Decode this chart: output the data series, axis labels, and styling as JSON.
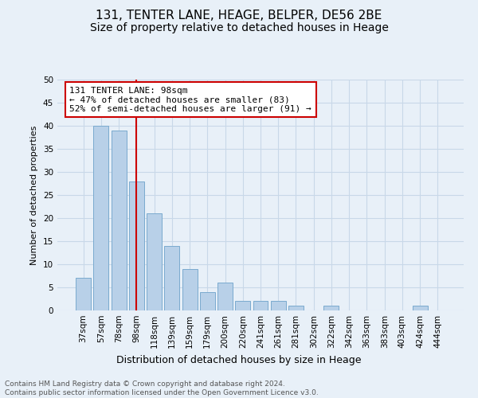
{
  "title": "131, TENTER LANE, HEAGE, BELPER, DE56 2BE",
  "subtitle": "Size of property relative to detached houses in Heage",
  "xlabel": "Distribution of detached houses by size in Heage",
  "ylabel": "Number of detached properties",
  "categories": [
    "37sqm",
    "57sqm",
    "78sqm",
    "98sqm",
    "118sqm",
    "139sqm",
    "159sqm",
    "179sqm",
    "200sqm",
    "220sqm",
    "241sqm",
    "261sqm",
    "281sqm",
    "302sqm",
    "322sqm",
    "342sqm",
    "363sqm",
    "383sqm",
    "403sqm",
    "424sqm",
    "444sqm"
  ],
  "values": [
    7,
    40,
    39,
    28,
    21,
    14,
    9,
    4,
    6,
    2,
    2,
    2,
    1,
    0,
    1,
    0,
    0,
    0,
    0,
    1,
    0
  ],
  "bar_color": "#b8d0e8",
  "bar_edgecolor": "#7aaacf",
  "highlight_index": 3,
  "highlight_line_color": "#cc0000",
  "annotation_text": "131 TENTER LANE: 98sqm\n← 47% of detached houses are smaller (83)\n52% of semi-detached houses are larger (91) →",
  "annotation_box_color": "#ffffff",
  "annotation_box_edgecolor": "#cc0000",
  "ylim": [
    0,
    50
  ],
  "yticks": [
    0,
    5,
    10,
    15,
    20,
    25,
    30,
    35,
    40,
    45,
    50
  ],
  "grid_color": "#c8d8e8",
  "background_color": "#e8f0f8",
  "footnote": "Contains HM Land Registry data © Crown copyright and database right 2024.\nContains public sector information licensed under the Open Government Licence v3.0.",
  "title_fontsize": 11,
  "subtitle_fontsize": 10,
  "xlabel_fontsize": 9,
  "ylabel_fontsize": 8,
  "tick_fontsize": 7.5,
  "annotation_fontsize": 8,
  "footnote_fontsize": 6.5
}
